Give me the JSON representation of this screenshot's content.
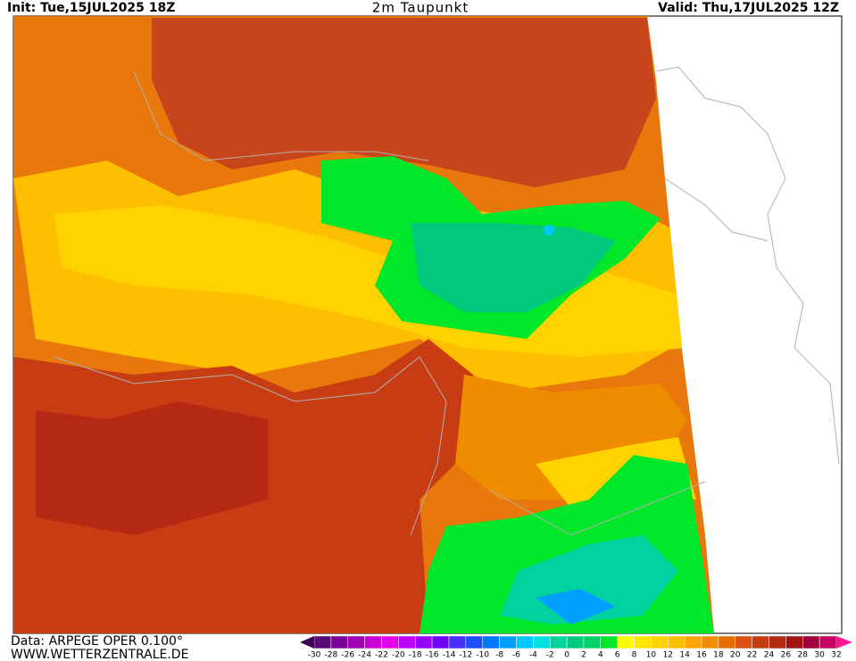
{
  "header": {
    "init": "Init: Tue,15JUL2025 18Z",
    "title": "2m Taupunkt",
    "valid": "Valid: Thu,17JUL2025 12Z"
  },
  "footer": {
    "data": "Data: ARPEGE OPER 0.100°",
    "site": "WWW.WETTERZENTRALE.DE"
  },
  "colorbar": {
    "ticks": [
      -30,
      -28,
      -26,
      -24,
      -22,
      -20,
      -18,
      -16,
      -14,
      -12,
      -10,
      -8,
      -6,
      -4,
      -2,
      0,
      2,
      4,
      6,
      8,
      10,
      12,
      14,
      16,
      18,
      20,
      22,
      24,
      26,
      28,
      30,
      32
    ],
    "colors": [
      "#5a0a78",
      "#7a0096",
      "#a000b4",
      "#c800d2",
      "#e600f0",
      "#c000ff",
      "#9600ff",
      "#6e00ff",
      "#4632ff",
      "#1e50ff",
      "#0078ff",
      "#00a0ff",
      "#00c8ff",
      "#00e0e0",
      "#00d2a0",
      "#00c87d",
      "#00d264",
      "#00e628",
      "#ffff00",
      "#ffe600",
      "#ffd200",
      "#ffbe00",
      "#ffa500",
      "#f08c00",
      "#e66e00",
      "#dc5014",
      "#c83c14",
      "#b42814",
      "#a01414",
      "#a0003c",
      "#c80064"
    ],
    "under_color": "#3c0050",
    "over_color": "#ff1493"
  }
}
